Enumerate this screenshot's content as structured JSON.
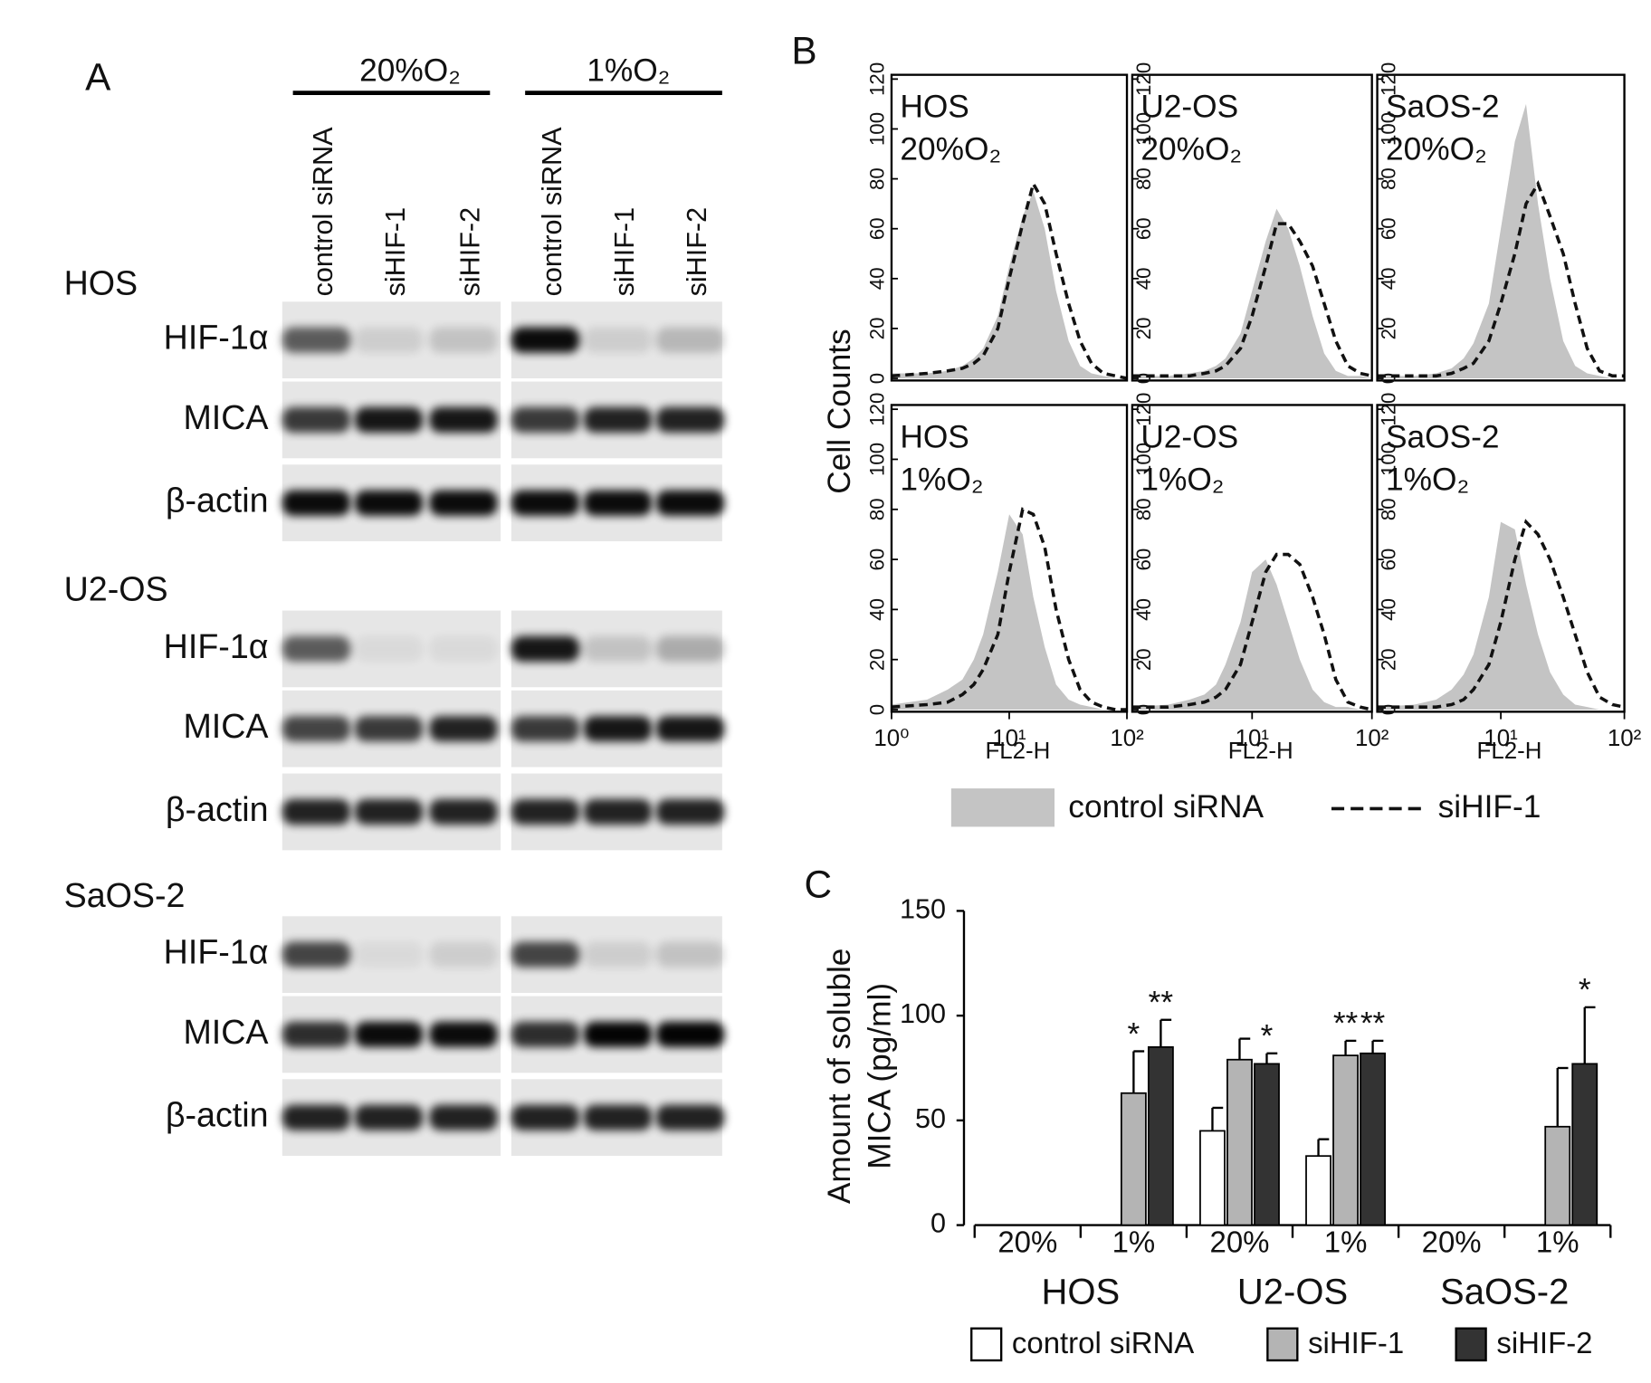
{
  "panel_a": {
    "label": "A",
    "conditions": [
      "20%O₂",
      "1%O₂"
    ],
    "lanes": [
      "control siRNA",
      "siHIF-1",
      "siHIF-2",
      "control siRNA",
      "siHIF-1",
      "siHIF-2"
    ],
    "cell_lines": [
      {
        "name": "HOS",
        "rows": [
          "HIF-1α",
          "MICA",
          "β-actin"
        ]
      },
      {
        "name": "U2-OS",
        "rows": [
          "HIF-1α",
          "MICA",
          "β-actin"
        ]
      },
      {
        "name": "SaOS-2",
        "rows": [
          "HIF-1α",
          "MICA",
          "β-actin"
        ]
      }
    ]
  },
  "panel_b": {
    "label": "B",
    "y_label": "Cell Counts"
  },
  "panel_c": {
    "label": "C"
  },
  "chart_data": [
    {
      "type": "histogram",
      "title": "HOS",
      "subtitle": "20%O₂",
      "log_x": true,
      "xlim": [
        1,
        100
      ],
      "ylim": [
        0,
        120
      ],
      "yticks": [
        0,
        20,
        40,
        60,
        80,
        100,
        120
      ],
      "x": [
        1,
        2,
        3,
        4,
        5,
        6,
        8,
        10,
        13,
        16,
        20,
        25,
        32,
        40,
        50,
        63,
        80,
        100
      ],
      "series": [
        {
          "name": "control siRNA",
          "style": "fill",
          "color": "#c4c4c4",
          "values": [
            2,
            2,
            3,
            5,
            8,
            12,
            25,
            45,
            65,
            75,
            60,
            35,
            15,
            5,
            2,
            1,
            0,
            0
          ]
        },
        {
          "name": "siHIF-1",
          "style": "dashed",
          "color": "#111111",
          "values": [
            1,
            2,
            3,
            4,
            6,
            9,
            20,
            40,
            62,
            78,
            70,
            50,
            30,
            15,
            6,
            2,
            1,
            0
          ]
        }
      ]
    },
    {
      "type": "histogram",
      "title": "U2-OS",
      "subtitle": "20%O₂",
      "log_x": true,
      "xlim": [
        1,
        100
      ],
      "ylim": [
        0,
        120
      ],
      "yticks": [
        0,
        20,
        40,
        60,
        80,
        100,
        120
      ],
      "x": [
        1,
        2,
        3,
        4,
        5,
        6,
        8,
        10,
        13,
        16,
        20,
        25,
        32,
        40,
        50,
        63,
        80,
        100
      ],
      "series": [
        {
          "style": "fill",
          "color": "#c4c4c4",
          "values": [
            1,
            1,
            2,
            3,
            5,
            8,
            18,
            35,
            55,
            68,
            60,
            45,
            25,
            10,
            3,
            1,
            1,
            0
          ]
        },
        {
          "style": "dashed",
          "color": "#111111",
          "values": [
            1,
            1,
            1,
            2,
            3,
            5,
            12,
            25,
            45,
            62,
            62,
            55,
            45,
            30,
            15,
            5,
            2,
            1
          ]
        }
      ]
    },
    {
      "type": "histogram",
      "title": "SaOS-2",
      "subtitle": "20%O₂",
      "log_x": true,
      "xlim": [
        1,
        100
      ],
      "ylim": [
        0,
        120
      ],
      "yticks": [
        0,
        20,
        40,
        60,
        80,
        100,
        120
      ],
      "x": [
        1,
        2,
        3,
        4,
        5,
        6,
        8,
        10,
        13,
        16,
        20,
        25,
        32,
        40,
        50,
        63,
        80,
        100
      ],
      "series": [
        {
          "style": "fill",
          "color": "#c4c4c4",
          "values": [
            1,
            1,
            2,
            4,
            8,
            14,
            30,
            60,
            95,
            110,
            70,
            40,
            15,
            5,
            2,
            1,
            0,
            0
          ]
        },
        {
          "style": "dashed",
          "color": "#111111",
          "values": [
            1,
            1,
            1,
            2,
            4,
            6,
            15,
            30,
            50,
            70,
            78,
            65,
            50,
            30,
            12,
            3,
            1,
            1
          ]
        }
      ]
    },
    {
      "type": "histogram",
      "title": "HOS",
      "subtitle": "1%O₂",
      "x_label": "FL2-H",
      "log_x": true,
      "xlim": [
        1,
        100
      ],
      "ylim": [
        0,
        120
      ],
      "yticks": [
        0,
        20,
        40,
        60,
        80,
        100,
        120
      ],
      "xticks": [
        {
          "value": 1,
          "label": "10⁰"
        },
        {
          "value": 10,
          "label": "10¹"
        },
        {
          "value": 100,
          "label": "10²"
        }
      ],
      "x": [
        1,
        2,
        3,
        4,
        5,
        6,
        8,
        10,
        13,
        16,
        20,
        25,
        32,
        40,
        50,
        63,
        80,
        100
      ],
      "series": [
        {
          "style": "fill",
          "color": "#c4c4c4",
          "values": [
            2,
            4,
            8,
            12,
            20,
            30,
            55,
            78,
            70,
            45,
            25,
            10,
            4,
            2,
            1,
            0,
            0,
            0
          ]
        },
        {
          "style": "dashed",
          "color": "#111111",
          "values": [
            1,
            2,
            3,
            6,
            10,
            16,
            30,
            55,
            80,
            78,
            65,
            40,
            20,
            8,
            3,
            1,
            0,
            0
          ]
        }
      ]
    },
    {
      "type": "histogram",
      "title": "U2-OS",
      "subtitle": "1%O₂",
      "x_label": "FL2-H",
      "log_x": true,
      "xlim": [
        1,
        100
      ],
      "ylim": [
        0,
        120
      ],
      "yticks": [
        0,
        20,
        40,
        60,
        80,
        100,
        120
      ],
      "xticks": [
        {
          "value": 10,
          "label": "10¹"
        },
        {
          "value": 100,
          "label": "10²"
        }
      ],
      "x": [
        1,
        2,
        3,
        4,
        5,
        6,
        8,
        10,
        13,
        16,
        20,
        25,
        32,
        40,
        50,
        63,
        80,
        100
      ],
      "series": [
        {
          "style": "fill",
          "color": "#c4c4c4",
          "values": [
            1,
            2,
            4,
            6,
            10,
            18,
            35,
            55,
            60,
            50,
            35,
            20,
            8,
            3,
            1,
            1,
            0,
            0
          ]
        },
        {
          "style": "dashed",
          "color": "#111111",
          "values": [
            1,
            1,
            2,
            3,
            5,
            8,
            18,
            35,
            55,
            62,
            62,
            58,
            45,
            30,
            12,
            3,
            1,
            0
          ]
        }
      ]
    },
    {
      "type": "histogram",
      "title": "SaOS-2",
      "subtitle": "1%O₂",
      "x_label": "FL2-H",
      "log_x": true,
      "xlim": [
        1,
        100
      ],
      "ylim": [
        0,
        120
      ],
      "yticks": [
        0,
        20,
        40,
        60,
        80,
        100,
        120
      ],
      "xticks": [
        {
          "value": 10,
          "label": "10¹"
        },
        {
          "value": 100,
          "label": "10²"
        }
      ],
      "x": [
        1,
        2,
        3,
        4,
        5,
        6,
        8,
        10,
        13,
        16,
        20,
        25,
        32,
        40,
        50,
        63,
        80,
        100
      ],
      "series": [
        {
          "style": "fill",
          "color": "#c4c4c4",
          "values": [
            1,
            2,
            4,
            8,
            14,
            22,
            45,
            75,
            72,
            50,
            30,
            15,
            6,
            2,
            1,
            0,
            0,
            0
          ]
        },
        {
          "style": "dashed",
          "color": "#111111",
          "values": [
            1,
            1,
            1,
            2,
            4,
            8,
            18,
            35,
            60,
            75,
            70,
            60,
            45,
            30,
            15,
            5,
            2,
            1
          ]
        }
      ]
    },
    {
      "type": "bar",
      "y_label": [
        "Amount of soluble",
        "MICA (pg/ml)"
      ],
      "ylim": [
        0,
        150
      ],
      "yticks": [
        0,
        50,
        100,
        150
      ],
      "categories": [
        "20%",
        "1%",
        "20%",
        "1%",
        "20%",
        "1%"
      ],
      "groups": [
        "HOS",
        "U2-OS",
        "SaOS-2"
      ],
      "series": [
        {
          "name": "control siRNA",
          "color": "#ffffff",
          "values": [
            null,
            null,
            45,
            33,
            null,
            null
          ],
          "errors": [
            null,
            null,
            11,
            8,
            null,
            null
          ],
          "significance": [
            null,
            null,
            null,
            null,
            null,
            null
          ]
        },
        {
          "name": "siHIF-1",
          "color": "#b4b4b4",
          "values": [
            null,
            63,
            79,
            81,
            null,
            47
          ],
          "errors": [
            null,
            20,
            10,
            7,
            null,
            28
          ],
          "significance": [
            null,
            "*",
            null,
            "**",
            null,
            null
          ]
        },
        {
          "name": "siHIF-2",
          "color": "#333333",
          "values": [
            null,
            85,
            77,
            82,
            null,
            77
          ],
          "errors": [
            null,
            13,
            5,
            6,
            null,
            27
          ],
          "significance": [
            null,
            "**",
            "*",
            "**",
            null,
            "*"
          ]
        }
      ]
    }
  ]
}
